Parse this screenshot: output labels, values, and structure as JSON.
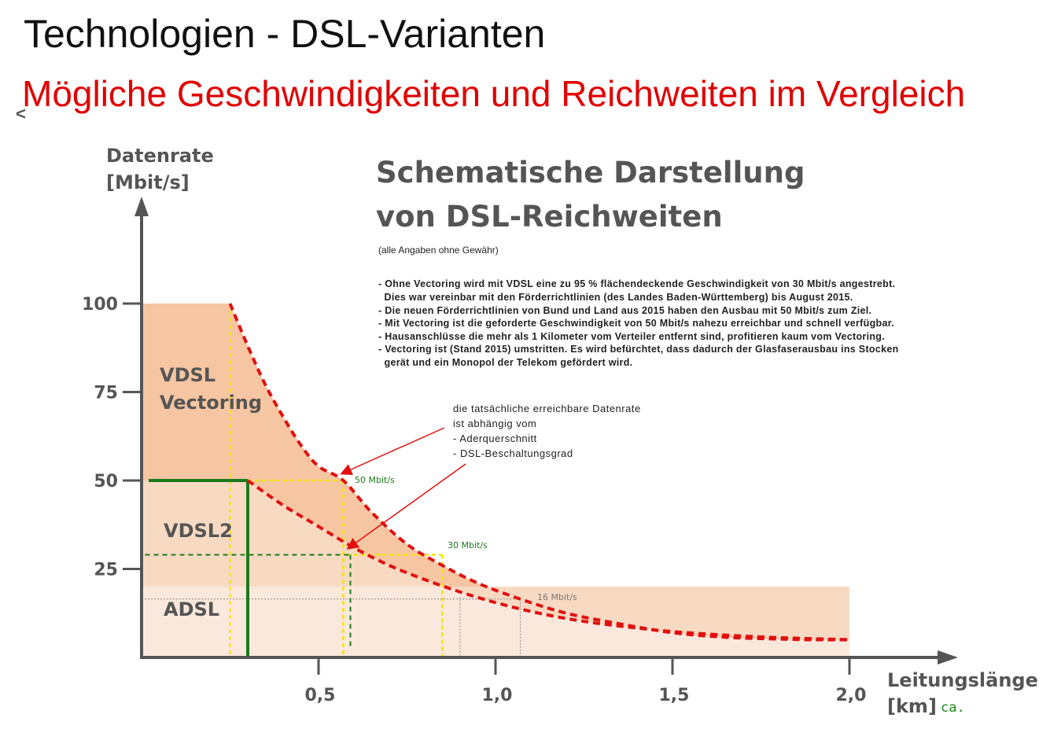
{
  "slide": {
    "title": "Technologien - DSL-Varianten",
    "subtitle": "Mögliche Geschwindigkeiten und Reichweiten  im Vergleich",
    "corner_mark": "<"
  },
  "heading": {
    "line1": "Schematische Darstellung",
    "line2": "von DSL-Reichweiten",
    "disclaimer": "(alle Angaben ohne Gewähr)"
  },
  "bullets": [
    "- Ohne Vectoring wird mit VDSL eine zu 95 % flächendeckende Geschwindigkeit von 30 Mbit/s angestrebt.",
    "  Dies war vereinbar mit den Förderrichtlinien (des Landes Baden-Württemberg) bis August 2015.",
    "- Die neuen Förderrichtlinien von Bund und Land aus 2015 haben den Ausbau mit 50 Mbit/s zum Ziel.",
    "- Mit Vectoring ist die geforderte Geschwindigkeit von 50 Mbit/s nahezu erreichbar und schnell verfügbar.",
    "- Hausanschlüsse die mehr als 1 Kilometer vom Verteiler entfernt sind, profitieren kaum vom Vectoring.",
    "- Vectoring ist (Stand 2015) umstritten. Es wird befürchtet, dass dadurch der Glasfaserausbau ins Stocken",
    "  gerät und ein Monopol der Telekom gefördert wird."
  ],
  "callout": [
    "die tatsächliche erreichbare Datenrate",
    "ist abhängig vom",
    "- Aderquerschnitt",
    "- DSL-Beschaltungsgrad"
  ],
  "colors": {
    "vectoring_band": "#f6c5a2",
    "vdsl2_band": "#f8d9c2",
    "adsl_band": "#fae8dc",
    "curve": "#e01010",
    "green": "#1a7a1a",
    "yellow": "#f2e600",
    "axis": "#555555"
  },
  "chart_data": {
    "type": "area",
    "ylabel_line1": "Datenrate",
    "ylabel_line2": "[Mbit/s]",
    "xlabel_line1": "Leitungslänge",
    "xlabel_line2": "[km]",
    "xlabel_suffix": "ca.",
    "xlim": [
      0,
      2.2
    ],
    "ylim": [
      0,
      120
    ],
    "x_ticks": [
      {
        "value": 0.5,
        "label": "0,5"
      },
      {
        "value": 1.0,
        "label": "1,0"
      },
      {
        "value": 1.5,
        "label": "1,5"
      },
      {
        "value": 2.0,
        "label": "2,0"
      }
    ],
    "y_ticks": [
      {
        "value": 100,
        "label": "100"
      },
      {
        "value": 75,
        "label": "75"
      },
      {
        "value": 50,
        "label": "50"
      },
      {
        "value": 25,
        "label": "25"
      }
    ],
    "bands": [
      {
        "name": "VDSL Vectoring",
        "label_line1": "VDSL",
        "label_line2": "Vectoring",
        "ymin": 50,
        "ymax": 100
      },
      {
        "name": "VDSL2",
        "label_line1": "VDSL2",
        "label_line2": "",
        "ymin": 20,
        "ymax": 50
      },
      {
        "name": "ADSL",
        "label_line1": "ADSL",
        "label_line2": "",
        "ymin": 0,
        "ymax": 20
      }
    ],
    "series": [
      {
        "name": "VDSL Vectoring",
        "x": [
          0.25,
          0.3,
          0.35,
          0.4,
          0.45,
          0.5,
          0.57,
          0.65,
          0.75,
          0.85,
          0.95,
          1.07,
          1.2,
          1.35,
          1.5,
          1.65,
          1.8,
          1.9,
          2.0
        ],
        "y": [
          100,
          88,
          77,
          68,
          60,
          54,
          50,
          41,
          32,
          26,
          21,
          16.5,
          12.5,
          9.5,
          7,
          5.7,
          5.2,
          5,
          5
        ]
      },
      {
        "name": "VDSL2",
        "x": [
          0.3,
          0.4,
          0.5,
          0.6,
          0.7,
          0.8,
          0.9,
          1.0,
          1.1,
          1.2,
          1.3,
          1.4,
          1.5,
          1.65,
          1.8,
          2.0
        ],
        "y": [
          50,
          43,
          37,
          31,
          26,
          22,
          18.5,
          15.5,
          13,
          11,
          9.5,
          8.3,
          7.3,
          6.3,
          5.6,
          5
        ]
      }
    ],
    "reference_lines": [
      {
        "label": "50 Mbit/s",
        "y": 50,
        "x_end": 0.57,
        "color": "yellow"
      },
      {
        "label": "30 Mbit/s",
        "y": 29,
        "x_end": 0.85,
        "color": "yellow"
      },
      {
        "label": "16 Mbit/s",
        "y": 16.5,
        "x_end": 1.07,
        "color": "gray"
      }
    ],
    "rate_labels": [
      "50 Mbit/s",
      "30 Mbit/s",
      "16 Mbit/s"
    ]
  }
}
